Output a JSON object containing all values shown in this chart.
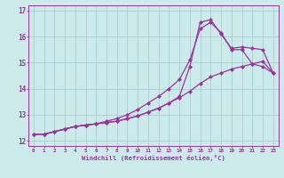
{
  "xlabel": "Windchill (Refroidissement éolien,°C)",
  "bg_color": "#cceaea",
  "grid_color": "#a8cece",
  "line_color": "#993399",
  "xlim": [
    -0.5,
    23.5
  ],
  "ylim": [
    11.8,
    17.2
  ],
  "yticks": [
    12,
    13,
    14,
    15,
    16,
    17
  ],
  "xticks": [
    0,
    1,
    2,
    3,
    4,
    5,
    6,
    7,
    8,
    9,
    10,
    11,
    12,
    13,
    14,
    15,
    16,
    17,
    18,
    19,
    20,
    21,
    22,
    23
  ],
  "line1_x": [
    0,
    1,
    2,
    3,
    4,
    5,
    6,
    7,
    8,
    9,
    10,
    11,
    12,
    13,
    14,
    15,
    16,
    17,
    18,
    19,
    20,
    21,
    22,
    23
  ],
  "line1_y": [
    12.25,
    12.25,
    12.35,
    12.45,
    12.55,
    12.6,
    12.65,
    12.7,
    12.75,
    12.85,
    12.95,
    13.1,
    13.25,
    13.45,
    13.7,
    14.85,
    16.55,
    16.65,
    16.1,
    15.55,
    15.6,
    15.55,
    15.5,
    14.6
  ],
  "line2_x": [
    0,
    1,
    2,
    3,
    4,
    5,
    6,
    7,
    8,
    9,
    10,
    11,
    12,
    13,
    14,
    15,
    16,
    17,
    18,
    19,
    20,
    21,
    22,
    23
  ],
  "line2_y": [
    12.25,
    12.25,
    12.35,
    12.45,
    12.55,
    12.6,
    12.65,
    12.75,
    12.85,
    13.0,
    13.2,
    13.45,
    13.7,
    14.0,
    14.35,
    15.1,
    16.3,
    16.55,
    16.15,
    15.5,
    15.5,
    14.95,
    14.85,
    14.6
  ],
  "line3_x": [
    0,
    1,
    2,
    3,
    4,
    5,
    6,
    7,
    8,
    9,
    10,
    11,
    12,
    13,
    14,
    15,
    16,
    17,
    18,
    19,
    20,
    21,
    22,
    23
  ],
  "line3_y": [
    12.25,
    12.25,
    12.35,
    12.45,
    12.55,
    12.6,
    12.65,
    12.7,
    12.75,
    12.85,
    12.95,
    13.1,
    13.25,
    13.45,
    13.65,
    13.9,
    14.2,
    14.45,
    14.6,
    14.75,
    14.85,
    14.95,
    15.05,
    14.6
  ],
  "markersize": 2.5,
  "linewidth": 0.9
}
